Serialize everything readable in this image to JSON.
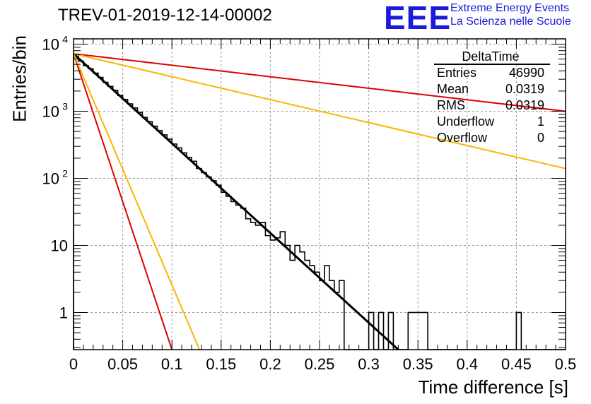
{
  "header": {
    "title": "TREV-01-2019-12-14-00002",
    "logo_text": "EEE",
    "logo_line1": "Extreme Energy Events",
    "logo_line2": "La Scienza nelle Scuole"
  },
  "stats": {
    "title": "DeltaTime",
    "rows": [
      {
        "key": "Entries",
        "value": "46990"
      },
      {
        "key": "Mean",
        "value": "0.0319"
      },
      {
        "key": "RMS",
        "value": "0.0319"
      },
      {
        "key": "Underflow",
        "value": "1"
      },
      {
        "key": "Overflow",
        "value": "0"
      }
    ]
  },
  "chart_data": {
    "type": "line",
    "xlabel": "Time difference [s]",
    "ylabel": "Entries/bin",
    "xlim": [
      0,
      0.5
    ],
    "ylim": [
      0.28,
      12000
    ],
    "yscale": "log",
    "grid": true,
    "x_ticks": [
      "0",
      "0.05",
      "0.1",
      "0.15",
      "0.2",
      "0.25",
      "0.3",
      "0.35",
      "0.4",
      "0.45",
      "0.5"
    ],
    "y_ticks": [
      {
        "value": 1,
        "label": "1"
      },
      {
        "value": 10,
        "label": "10"
      },
      {
        "value": 100,
        "label": "10",
        "exp": "2"
      },
      {
        "value": 1000,
        "label": "10",
        "exp": "3"
      },
      {
        "value": 10000,
        "label": "10",
        "exp": "4"
      }
    ],
    "histogram": {
      "bin_width": 0.005,
      "counts": [
        7000,
        5600,
        4800,
        4300,
        3700,
        3200,
        2700,
        2350,
        2050,
        1720,
        1500,
        1290,
        1120,
        960,
        810,
        700,
        600,
        515,
        445,
        385,
        325,
        285,
        240,
        205,
        180,
        140,
        122,
        105,
        92,
        79,
        62,
        54,
        45,
        40,
        36,
        25,
        22,
        20,
        22,
        14,
        12,
        13,
        16,
        10,
        6,
        10,
        8,
        6,
        5,
        4,
        3,
        5,
        3,
        2,
        3,
        0.2,
        0.2,
        0.2,
        0.2,
        0.2,
        1,
        0.2,
        1,
        0.2,
        1,
        0.2,
        0.2,
        0.2,
        1,
        1,
        1,
        1,
        0.2,
        0.2,
        0.2,
        0.2,
        0.2,
        0.2,
        0.2,
        0.2,
        0.2,
        0.2,
        0.2,
        0.2,
        0.2,
        0.2,
        0.2,
        0.2,
        0.2,
        0.2,
        1,
        0.2,
        0.2,
        0.2,
        0.2,
        0.2,
        0.2,
        0.2,
        0.2,
        0.2
      ]
    },
    "series": [
      {
        "color": "#000000",
        "width": 3,
        "x": [
          0,
          0.33
        ],
        "y": [
          7200,
          0.28
        ]
      },
      {
        "color": "#e00000",
        "width": 2,
        "x": [
          0,
          0.5
        ],
        "y": [
          7200,
          1000
        ]
      },
      {
        "color": "#f5b800",
        "width": 2,
        "x": [
          0,
          0.5
        ],
        "y": [
          7200,
          140
        ]
      },
      {
        "color": "#e00000",
        "width": 2,
        "x": [
          0,
          0.1
        ],
        "y": [
          7200,
          0.28
        ]
      },
      {
        "color": "#f5b800",
        "width": 2,
        "x": [
          0,
          0.128
        ],
        "y": [
          7200,
          0.28
        ]
      }
    ]
  }
}
